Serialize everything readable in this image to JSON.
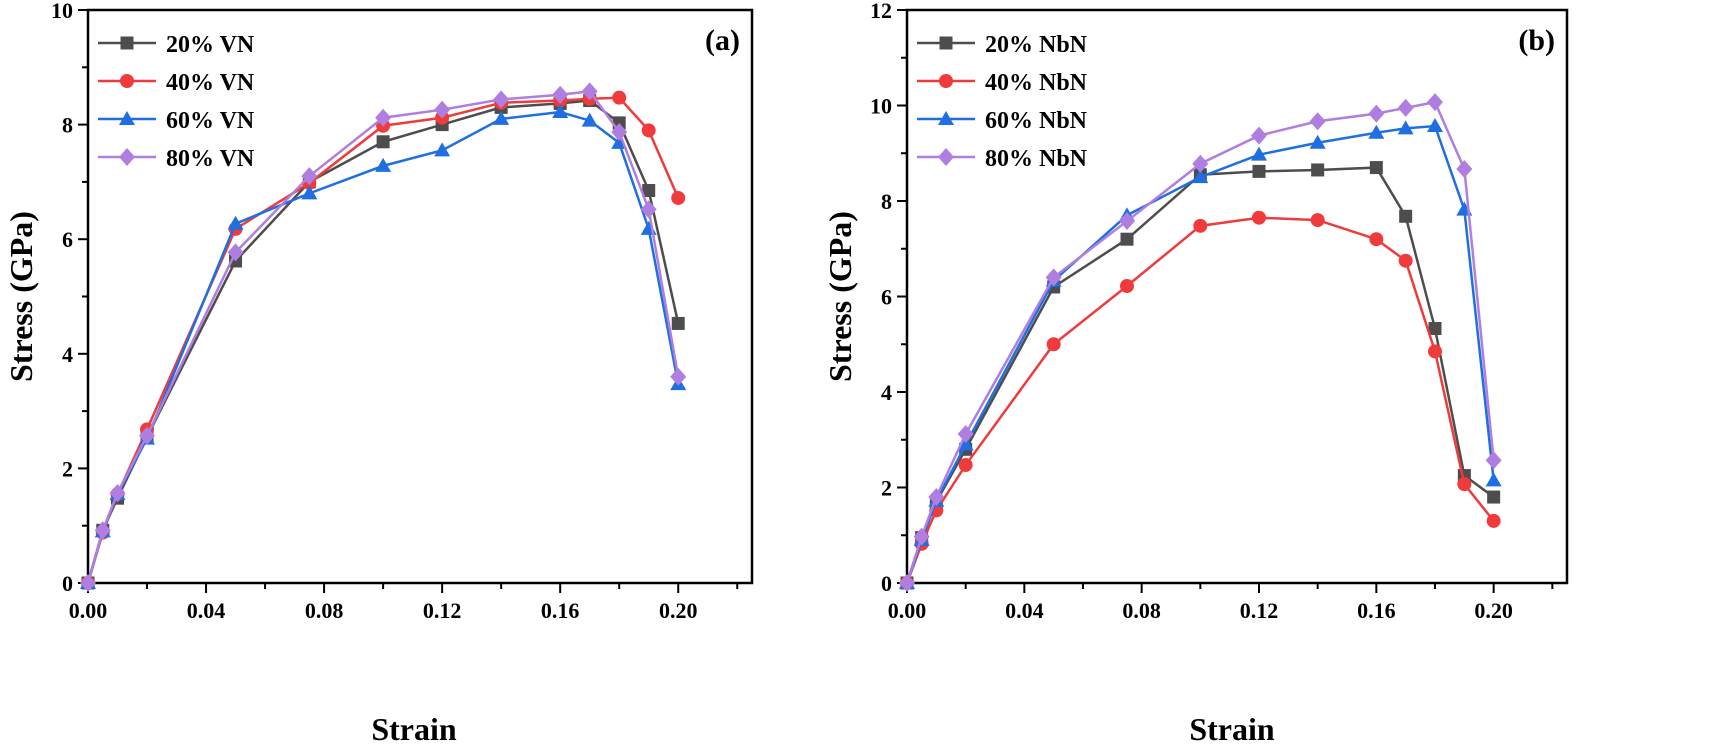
{
  "chart_data": [
    {
      "type": "line",
      "panel_label": "(a)",
      "xlabel": "Strain",
      "ylabel": "Stress (GPa)",
      "xlim": [
        0,
        0.225
      ],
      "ylim": [
        0,
        10
      ],
      "xticks": [
        "0.00",
        "0.04",
        "0.08",
        "0.12",
        "0.16",
        "0.20"
      ],
      "yticks": [
        "0",
        "2",
        "4",
        "6",
        "8",
        "10"
      ],
      "grid": false,
      "legend": "top-left",
      "x": [
        0,
        0.005,
        0.01,
        0.02,
        0.05,
        0.075,
        0.1,
        0.12,
        0.14,
        0.16,
        0.17,
        0.18,
        0.19,
        0.2
      ],
      "series": [
        {
          "name": "20% VN",
          "color": "#4d4d4d",
          "marker": "square",
          "values": [
            0,
            0.92,
            1.48,
            2.55,
            5.62,
            7.0,
            7.7,
            8.0,
            8.3,
            8.37,
            8.42,
            8.03,
            6.85,
            4.53
          ]
        },
        {
          "name": "40% VN",
          "color": "#ef3b3b",
          "marker": "circle",
          "values": [
            0,
            0.88,
            1.55,
            2.68,
            6.18,
            6.98,
            7.98,
            8.12,
            8.38,
            8.42,
            8.45,
            8.47,
            7.9,
            6.72
          ]
        },
        {
          "name": "60% VN",
          "color": "#1f6fe0",
          "marker": "triangle",
          "values": [
            0,
            0.9,
            1.55,
            2.52,
            6.27,
            6.8,
            7.28,
            7.55,
            8.1,
            8.22,
            8.07,
            7.68,
            6.18,
            3.47
          ]
        },
        {
          "name": "80% VN",
          "color": "#b07ee0",
          "marker": "diamond",
          "values": [
            0,
            0.92,
            1.57,
            2.57,
            5.77,
            7.1,
            8.12,
            8.26,
            8.44,
            8.52,
            8.58,
            7.87,
            6.52,
            3.6
          ]
        }
      ]
    },
    {
      "type": "line",
      "panel_label": "(b)",
      "xlabel": "Strain",
      "ylabel": "Stress (GPa)",
      "xlim": [
        0,
        0.225
      ],
      "ylim": [
        0,
        12
      ],
      "xticks": [
        "0.00",
        "0.04",
        "0.08",
        "0.12",
        "0.16",
        "0.20"
      ],
      "yticks": [
        "0",
        "2",
        "4",
        "6",
        "8",
        "10",
        "12"
      ],
      "grid": false,
      "legend": "top-left",
      "x": [
        0,
        0.005,
        0.01,
        0.02,
        0.05,
        0.075,
        0.1,
        0.12,
        0.14,
        0.16,
        0.17,
        0.18,
        0.19,
        0.2
      ],
      "series": [
        {
          "name": "20% NbN",
          "color": "#4d4d4d",
          "marker": "square",
          "values": [
            0,
            0.95,
            1.7,
            2.8,
            6.2,
            7.2,
            8.55,
            8.62,
            8.65,
            8.7,
            7.68,
            5.33,
            2.25,
            1.8
          ]
        },
        {
          "name": "40% NbN",
          "color": "#ef3b3b",
          "marker": "circle",
          "values": [
            0,
            0.82,
            1.52,
            2.47,
            5.0,
            6.22,
            7.48,
            7.65,
            7.6,
            7.2,
            6.75,
            4.85,
            2.07,
            1.3
          ]
        },
        {
          "name": "60% NbN",
          "color": "#1f6fe0",
          "marker": "triangle",
          "values": [
            0,
            0.9,
            1.72,
            2.9,
            6.33,
            7.7,
            8.5,
            8.97,
            9.22,
            9.43,
            9.52,
            9.57,
            7.82,
            2.15
          ]
        },
        {
          "name": "80% NbN",
          "color": "#b07ee0",
          "marker": "diamond",
          "values": [
            0,
            0.97,
            1.8,
            3.12,
            6.4,
            7.58,
            8.78,
            9.37,
            9.67,
            9.83,
            9.95,
            10.07,
            8.67,
            2.57
          ]
        }
      ]
    }
  ]
}
